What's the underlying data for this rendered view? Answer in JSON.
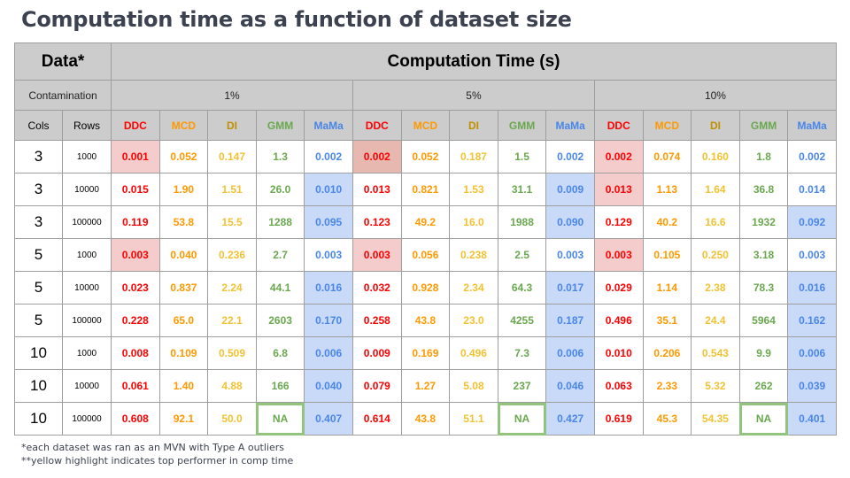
{
  "title": "Computation time as a function of dataset size",
  "header": {
    "data_label": "Data*",
    "time_label": "Computation Time (s)",
    "contamination_label": "Contamination",
    "contaminations": [
      "1%",
      "5%",
      "10%"
    ],
    "cols_label": "Cols",
    "rows_label": "Rows",
    "methods": [
      "DDC",
      "MCD",
      "DI",
      "GMM",
      "MaMa"
    ]
  },
  "colors": {
    "DDC": "#ff0000",
    "MCD": "#ff9900",
    "DI": "#f1c232",
    "GMM": "#6aa84f",
    "MaMa": "#4a86e8",
    "pink": "#f4cccc",
    "blue": "#c9daf8",
    "na_border": "#93c47d"
  },
  "rows": [
    {
      "cols": "3",
      "rows": "1000",
      "values": [
        "0.001",
        "0.052",
        "0.147",
        "1.3",
        "0.002",
        "0.002",
        "0.052",
        "0.187",
        "1.5",
        "0.002",
        "0.002",
        "0.074",
        "0.160",
        "1.8",
        "0.002"
      ]
    },
    {
      "cols": "3",
      "rows": "10000",
      "values": [
        "0.015",
        "1.90",
        "1.51",
        "26.0",
        "0.010",
        "0.013",
        "0.821",
        "1.53",
        "31.1",
        "0.009",
        "0.013",
        "1.13",
        "1.64",
        "36.8",
        "0.014"
      ]
    },
    {
      "cols": "3",
      "rows": "100000",
      "values": [
        "0.119",
        "53.8",
        "15.5",
        "1288",
        "0.095",
        "0.123",
        "49.2",
        "16.0",
        "1988",
        "0.090",
        "0.129",
        "40.2",
        "16.6",
        "1932",
        "0.092"
      ]
    },
    {
      "cols": "5",
      "rows": "1000",
      "values": [
        "0.003",
        "0.040",
        "0.236",
        "2.7",
        "0.003",
        "0.003",
        "0.056",
        "0.238",
        "2.5",
        "0.003",
        "0.003",
        "0.105",
        "0.250",
        "3.18",
        "0.003"
      ]
    },
    {
      "cols": "5",
      "rows": "10000",
      "values": [
        "0.023",
        "0.837",
        "2.24",
        "44.1",
        "0.016",
        "0.032",
        "0.928",
        "2.34",
        "64.3",
        "0.017",
        "0.029",
        "1.14",
        "2.38",
        "78.3",
        "0.016"
      ]
    },
    {
      "cols": "5",
      "rows": "100000",
      "values": [
        "0.228",
        "65.0",
        "22.1",
        "2603",
        "0.170",
        "0.258",
        "43.8",
        "23.0",
        "4255",
        "0.187",
        "0.496",
        "35.1",
        "24.4",
        "5964",
        "0.162"
      ]
    },
    {
      "cols": "10",
      "rows": "1000",
      "values": [
        "0.008",
        "0.109",
        "0.509",
        "6.8",
        "0.006",
        "0.009",
        "0.169",
        "0.496",
        "7.3",
        "0.006",
        "0.010",
        "0.206",
        "0.543",
        "9.9",
        "0.006"
      ]
    },
    {
      "cols": "10",
      "rows": "10000",
      "values": [
        "0.061",
        "1.40",
        "4.88",
        "166",
        "0.040",
        "0.079",
        "1.27",
        "5.08",
        "237",
        "0.046",
        "0.063",
        "2.33",
        "5.32",
        "262",
        "0.039"
      ]
    },
    {
      "cols": "10",
      "rows": "100000",
      "values": [
        "0.608",
        "92.1",
        "50.0",
        "NA",
        "0.407",
        "0.614",
        "43.8",
        "51.1",
        "NA",
        "0.427",
        "0.619",
        "45.3",
        "54.35",
        "NA",
        "0.401"
      ]
    }
  ],
  "highlights": {
    "pink": [
      [
        0,
        0
      ],
      [
        3,
        0
      ],
      [
        3,
        5
      ],
      [
        0,
        10
      ],
      [
        1,
        10
      ],
      [
        3,
        10
      ]
    ],
    "pinkdark": [
      [
        0,
        5
      ]
    ],
    "blue": [
      [
        1,
        4
      ],
      [
        2,
        4
      ],
      [
        4,
        4
      ],
      [
        5,
        4
      ],
      [
        6,
        4
      ],
      [
        7,
        4
      ],
      [
        8,
        4
      ],
      [
        1,
        9
      ],
      [
        2,
        9
      ],
      [
        4,
        9
      ],
      [
        5,
        9
      ],
      [
        6,
        9
      ],
      [
        7,
        9
      ],
      [
        8,
        9
      ],
      [
        2,
        14
      ],
      [
        4,
        14
      ],
      [
        5,
        14
      ],
      [
        6,
        14
      ],
      [
        7,
        14
      ],
      [
        8,
        14
      ]
    ]
  },
  "notes": [
    "*each dataset was ran as an MVN with Type A outliers",
    "**yellow highlight indicates top performer in comp time"
  ]
}
